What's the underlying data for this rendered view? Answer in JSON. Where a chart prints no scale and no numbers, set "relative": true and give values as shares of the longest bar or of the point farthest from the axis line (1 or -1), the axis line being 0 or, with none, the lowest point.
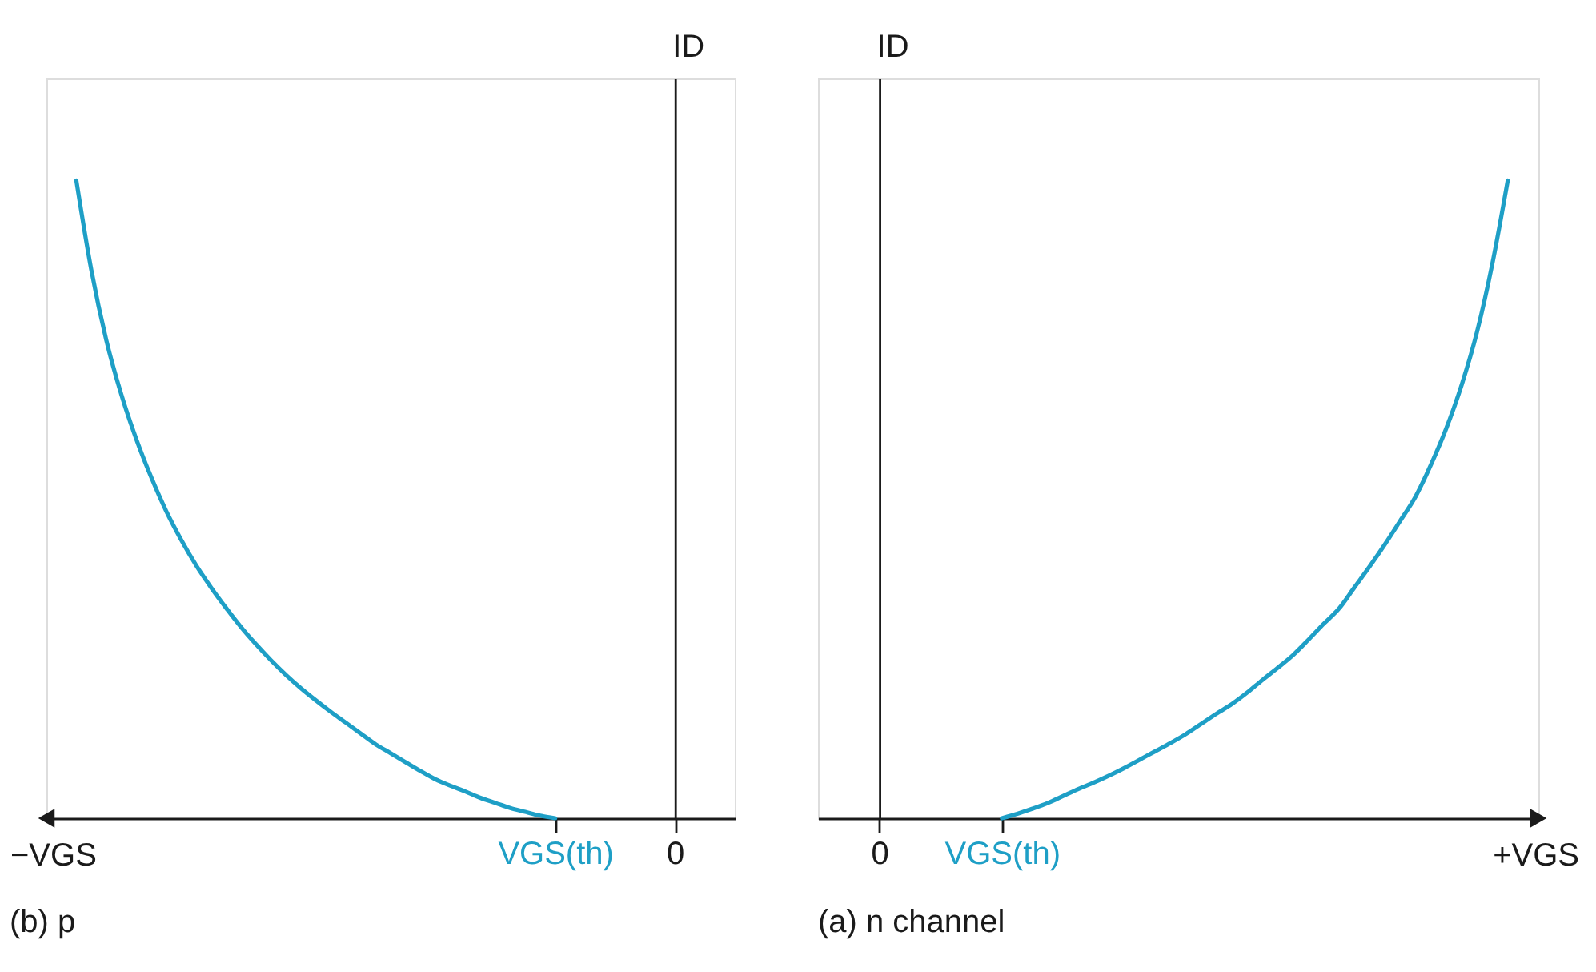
{
  "chart_data": [
    {
      "type": "line",
      "title": "(b) p",
      "xlabel": "−VGS",
      "ylabel": "ID",
      "relative": true,
      "categories": [
        null,
        null,
        null,
        null,
        null,
        null,
        null,
        null,
        null,
        null,
        null,
        null,
        null,
        null,
        null,
        null,
        null,
        null,
        null,
        null,
        null,
        null,
        null,
        null,
        null,
        null,
        null,
        null,
        null,
        null,
        null,
        null,
        null,
        null,
        "VGS(th)",
        null,
        null,
        null,
        null,
        null,
        null,
        null,
        "0",
        null,
        null,
        null,
        null
      ],
      "series": [
        {
          "color": "#1e9fc6",
          "values": [
            null,
            null,
            1.0,
            0.86,
            0.75,
            0.665,
            0.595,
            0.535,
            0.482,
            0.437,
            0.397,
            0.362,
            0.33,
            0.3,
            0.273,
            0.248,
            0.225,
            0.204,
            0.185,
            0.167,
            0.15,
            0.133,
            0.116,
            0.102,
            0.088,
            0.074,
            0.061,
            0.051,
            0.042,
            0.032,
            0.024,
            0.016,
            0.01,
            0.004,
            0,
            null,
            null,
            null,
            null,
            null,
            null,
            null,
            null,
            null,
            null,
            null,
            null
          ]
        }
      ]
    },
    {
      "type": "line",
      "title": "(a) n channel",
      "xlabel": "+VGS",
      "ylabel": "ID",
      "relative": true,
      "categories": [
        null,
        null,
        null,
        null,
        "0",
        null,
        null,
        null,
        null,
        null,
        null,
        null,
        "VGS(th)",
        null,
        null,
        null,
        null,
        null,
        null,
        null,
        null,
        null,
        null,
        null,
        null,
        null,
        null,
        null,
        null,
        null,
        null,
        null,
        null,
        null,
        null,
        null,
        null,
        null,
        null,
        null,
        null,
        null,
        null,
        null,
        null,
        null,
        null,
        null
      ],
      "series": [
        {
          "color": "#1e9fc6",
          "values": [
            null,
            null,
            null,
            null,
            null,
            null,
            null,
            null,
            null,
            null,
            null,
            null,
            0,
            0.007,
            0.015,
            0.024,
            0.035,
            0.046,
            0.056,
            0.067,
            0.079,
            0.092,
            0.105,
            0.118,
            0.132,
            0.148,
            0.164,
            0.179,
            0.197,
            0.217,
            0.236,
            0.256,
            0.28,
            0.305,
            0.329,
            0.362,
            0.395,
            0.43,
            0.467,
            0.505,
            0.555,
            0.612,
            0.68,
            0.763,
            0.87,
            1.0,
            null,
            null
          ]
        }
      ]
    }
  ]
}
